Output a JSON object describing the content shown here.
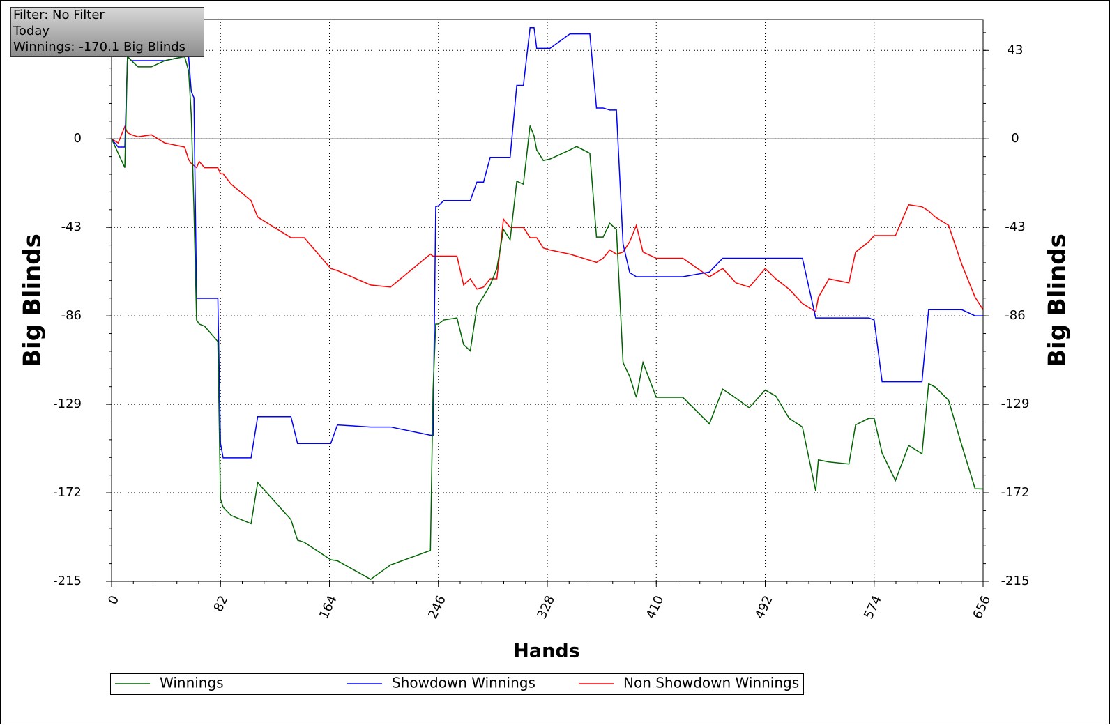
{
  "chart_data": {
    "type": "line",
    "annotations": [
      "Filter: No Filter",
      "Today",
      "Winnings: -170.1 Big Blinds"
    ],
    "xlabel": "Hands",
    "ylabel": "Big Blinds",
    "xlim": [
      0,
      656
    ],
    "xticks": [
      0,
      82,
      164,
      246,
      328,
      410,
      492,
      574,
      656
    ],
    "ylim": [
      -215,
      58
    ],
    "yticks": [
      43,
      0,
      -43,
      -86,
      -129,
      -172,
      -215
    ],
    "grid": true,
    "legend": "bottom",
    "x": [
      0,
      5,
      10,
      12,
      15,
      20,
      30,
      40,
      55,
      58,
      60,
      62,
      64,
      66,
      70,
      80,
      82,
      84,
      90,
      105,
      110,
      135,
      140,
      145,
      165,
      170,
      195,
      210,
      240,
      242,
      244,
      246,
      250,
      260,
      265,
      270,
      275,
      280,
      285,
      290,
      295,
      300,
      305,
      310,
      315,
      318,
      320,
      325,
      330,
      345,
      350,
      360,
      365,
      370,
      375,
      380,
      385,
      390,
      395,
      400,
      410,
      430,
      450,
      460,
      470,
      480,
      492,
      500,
      510,
      520,
      530,
      532,
      540,
      555,
      560,
      570,
      574,
      580,
      590,
      600,
      610,
      615,
      620,
      630,
      640,
      650,
      656
    ],
    "series": [
      {
        "name": "Winnings",
        "color": "#006400",
        "values": [
          0,
          -7,
          -14,
          40,
          38,
          35,
          35,
          38,
          40,
          33,
          11.5,
          -34,
          -88,
          -90,
          -91,
          -98.5,
          -175,
          -179,
          -183,
          -187,
          -167,
          -185,
          -195,
          -196,
          -204.5,
          -205,
          -214,
          -207,
          -200,
          -122,
          -90,
          -90,
          -88,
          -87,
          -100,
          -103,
          -81.6,
          -76.5,
          -71,
          -63,
          -44,
          -49,
          -20.6,
          -22,
          6.4,
          1.4,
          -5.4,
          -10.5,
          -9.8,
          -5.4,
          -3.7,
          -7,
          -47.7,
          -47.7,
          -41,
          -44,
          -108.7,
          -115.5,
          -125.6,
          -108.7,
          -125.6,
          -125.6,
          -138.5,
          -121.6,
          -126,
          -130.7,
          -122,
          -125,
          -135.8,
          -140,
          -171,
          -156,
          -157,
          -158,
          -139,
          -135.8,
          -135.8,
          -152.7,
          -166,
          -149,
          -153,
          -119,
          -120.6,
          -127,
          -149,
          -170,
          -170.1
        ]
      },
      {
        "name": "Showdown Winnings",
        "color": "#0000ff",
        "values": [
          0,
          -4,
          -4,
          40,
          38,
          38,
          38,
          38,
          40,
          40,
          23,
          20,
          -77.5,
          -77.5,
          -77.5,
          -77.5,
          -148,
          -155,
          -155,
          -155,
          -135,
          -135,
          -148,
          -148,
          -148,
          -139,
          -140,
          -140,
          -144,
          -144,
          -33,
          -32.5,
          -30,
          -30,
          -30,
          -30,
          -21,
          -21,
          -9,
          -9,
          -9,
          -9,
          26,
          26,
          54,
          54,
          44,
          44,
          44,
          51,
          51,
          51,
          15,
          15,
          14,
          14,
          -51,
          -65,
          -67,
          -67,
          -67,
          -67,
          -64.7,
          -58,
          -58,
          -58,
          -58,
          -58,
          -58,
          -58,
          -87,
          -87,
          -87,
          -87,
          -87,
          -87,
          -88,
          -118,
          -118,
          -118,
          -118,
          -83,
          -83,
          -83,
          -83,
          -86,
          -86
        ]
      },
      {
        "name": "Non Showdown Winnings",
        "color": "#ff0000",
        "values": [
          0,
          -2,
          6,
          3,
          2,
          1,
          2,
          -2,
          -4,
          -10,
          -12,
          -13,
          -14,
          -11,
          -14,
          -14,
          -17,
          -17,
          -22,
          -30,
          -38,
          -48,
          -48,
          -48,
          -63,
          -64,
          -71,
          -72,
          -56,
          -57,
          -57,
          -57,
          -57,
          -57,
          -71,
          -68,
          -73,
          -72,
          -68,
          -68,
          -39,
          -43,
          -43,
          -43,
          -48,
          -48,
          -48,
          -53,
          -54,
          -56,
          -57,
          -59,
          -60,
          -58,
          -54,
          -56,
          -55,
          -50,
          -42,
          -55,
          -58,
          -58,
          -67,
          -63,
          -70,
          -72,
          -63,
          -68,
          -73,
          -80,
          -84,
          -77,
          -68,
          -70,
          -55,
          -50,
          -47,
          -47,
          -47,
          -32,
          -33,
          -35,
          -38,
          -42,
          -61,
          -77,
          -83
        ]
      }
    ]
  }
}
